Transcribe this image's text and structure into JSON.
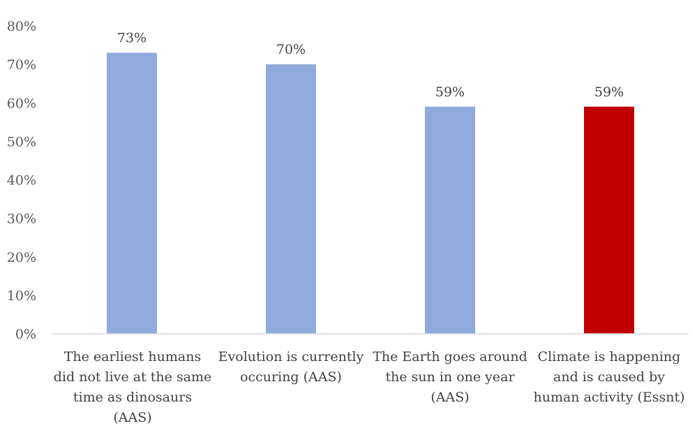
{
  "chart_data": {
    "type": "bar",
    "categories": [
      "The earliest humans did not live at the same time as dinosaurs (AAS)",
      "Evolution is currently occuring (AAS)",
      "The Earth goes around the sun in one year (AAS)",
      "Climate is happening and is caused by human activity (Essnt)"
    ],
    "category_lines": [
      "The earliest humans\ndid not live at the same\ntime as dinosaurs\n(AAS)",
      "Evolution is currently\noccuring (AAS)",
      "The Earth goes around\nthe sun in one year\n(AAS)",
      "Climate is happening\nand is caused by\nhuman activity (Essnt)"
    ],
    "values": [
      73,
      70,
      59,
      59
    ],
    "data_labels": [
      "73%",
      "70%",
      "59%",
      "59%"
    ],
    "bar_colors": [
      "#8faadc",
      "#8faadc",
      "#8faadc",
      "#c00000"
    ],
    "y_ticks": [
      0,
      10,
      20,
      30,
      40,
      50,
      60,
      70,
      80
    ],
    "y_tick_labels": [
      "0%",
      "10%",
      "20%",
      "30%",
      "40%",
      "50%",
      "60%",
      "70%",
      "80%"
    ],
    "ylim": [
      0,
      80
    ],
    "grid": false,
    "legend": "none",
    "title": "",
    "xlabel": "",
    "ylabel": ""
  }
}
